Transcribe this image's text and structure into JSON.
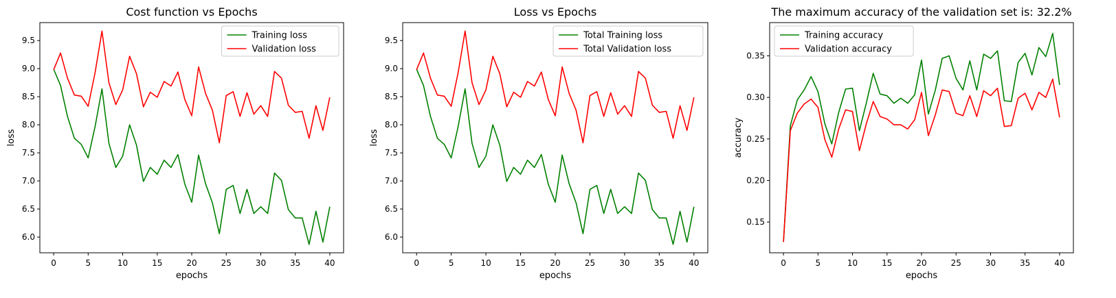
{
  "chart_data": [
    {
      "type": "line",
      "title": "Cost function vs Epochs",
      "xlabel": "epochs",
      "ylabel": "loss",
      "xlim": [
        -2,
        42
      ],
      "ylim": [
        5.72,
        9.82
      ],
      "xticks": [
        0,
        5,
        10,
        15,
        20,
        25,
        30,
        35,
        40
      ],
      "yticks": [
        6.0,
        6.5,
        7.0,
        7.5,
        8.0,
        8.5,
        9.0,
        9.5
      ],
      "ytick_decimals": 1,
      "legend": "top-right",
      "grid": false,
      "x": [
        0,
        1,
        2,
        3,
        4,
        5,
        6,
        7,
        8,
        9,
        10,
        11,
        12,
        13,
        14,
        15,
        16,
        17,
        18,
        19,
        20,
        21,
        22,
        23,
        24,
        25,
        26,
        27,
        28,
        29,
        30,
        31,
        32,
        33,
        34,
        35,
        36,
        37,
        38,
        39,
        40
      ],
      "series": [
        {
          "name": "Training loss",
          "color": "#008000",
          "values": [
            8.99,
            8.7,
            8.15,
            7.76,
            7.65,
            7.41,
            7.97,
            8.64,
            7.67,
            7.24,
            7.44,
            8.0,
            7.64,
            6.99,
            7.24,
            7.12,
            7.37,
            7.24,
            7.47,
            6.94,
            6.62,
            7.46,
            6.95,
            6.61,
            6.06,
            6.85,
            6.92,
            6.42,
            6.85,
            6.42,
            6.54,
            6.42,
            7.14,
            7.01,
            6.49,
            6.34,
            6.34,
            5.87,
            6.46,
            5.91,
            6.54
          ]
        },
        {
          "name": "Validation loss",
          "color": "#ff0000",
          "values": [
            8.98,
            9.28,
            8.83,
            8.53,
            8.51,
            8.33,
            8.93,
            9.67,
            8.75,
            8.36,
            8.62,
            9.22,
            8.91,
            8.32,
            8.58,
            8.49,
            8.77,
            8.69,
            8.94,
            8.45,
            8.16,
            9.03,
            8.56,
            8.26,
            7.68,
            8.52,
            8.59,
            8.15,
            8.57,
            8.19,
            8.34,
            8.15,
            8.95,
            8.83,
            8.35,
            8.22,
            8.24,
            7.76,
            8.34,
            7.9,
            8.49
          ]
        }
      ]
    },
    {
      "type": "line",
      "title": "Loss vs Epochs",
      "xlabel": "epochs",
      "ylabel": "loss",
      "xlim": [
        -2,
        42
      ],
      "ylim": [
        5.72,
        9.82
      ],
      "xticks": [
        0,
        5,
        10,
        15,
        20,
        25,
        30,
        35,
        40
      ],
      "yticks": [
        6.0,
        6.5,
        7.0,
        7.5,
        8.0,
        8.5,
        9.0,
        9.5
      ],
      "ytick_decimals": 1,
      "legend": "top-right",
      "grid": false,
      "x": [
        0,
        1,
        2,
        3,
        4,
        5,
        6,
        7,
        8,
        9,
        10,
        11,
        12,
        13,
        14,
        15,
        16,
        17,
        18,
        19,
        20,
        21,
        22,
        23,
        24,
        25,
        26,
        27,
        28,
        29,
        30,
        31,
        32,
        33,
        34,
        35,
        36,
        37,
        38,
        39,
        40
      ],
      "series": [
        {
          "name": "Total Training loss",
          "color": "#008000",
          "values": [
            8.99,
            8.7,
            8.15,
            7.76,
            7.65,
            7.41,
            7.97,
            8.64,
            7.67,
            7.24,
            7.44,
            8.0,
            7.64,
            6.99,
            7.24,
            7.12,
            7.37,
            7.24,
            7.47,
            6.94,
            6.62,
            7.46,
            6.95,
            6.61,
            6.06,
            6.85,
            6.92,
            6.42,
            6.85,
            6.42,
            6.54,
            6.42,
            7.14,
            7.01,
            6.49,
            6.34,
            6.34,
            5.87,
            6.46,
            5.91,
            6.54
          ]
        },
        {
          "name": "Total Validation loss",
          "color": "#ff0000",
          "values": [
            8.98,
            9.28,
            8.83,
            8.53,
            8.51,
            8.33,
            8.93,
            9.67,
            8.75,
            8.36,
            8.62,
            9.22,
            8.91,
            8.32,
            8.58,
            8.49,
            8.77,
            8.69,
            8.94,
            8.45,
            8.16,
            9.03,
            8.56,
            8.26,
            7.68,
            8.52,
            8.59,
            8.15,
            8.57,
            8.19,
            8.34,
            8.15,
            8.95,
            8.83,
            8.35,
            8.22,
            8.24,
            7.76,
            8.34,
            7.9,
            8.49
          ]
        }
      ]
    },
    {
      "type": "line",
      "title": "The maximum accuracy of the validation set is: 32.2%",
      "xlabel": "epochs",
      "ylabel": "accuracy",
      "xlim": [
        -2,
        42
      ],
      "ylim": [
        0.113,
        0.39
      ],
      "xticks": [
        0,
        5,
        10,
        15,
        20,
        25,
        30,
        35,
        40
      ],
      "yticks": [
        0.15,
        0.2,
        0.25,
        0.3,
        0.35
      ],
      "ytick_decimals": 2,
      "legend": "top-left",
      "grid": false,
      "x": [
        0,
        1,
        2,
        3,
        4,
        5,
        6,
        7,
        8,
        9,
        10,
        11,
        12,
        13,
        14,
        15,
        16,
        17,
        18,
        19,
        20,
        21,
        22,
        23,
        24,
        25,
        26,
        27,
        28,
        29,
        30,
        31,
        32,
        33,
        34,
        35,
        36,
        37,
        38,
        39,
        40
      ],
      "series": [
        {
          "name": "Training accuracy",
          "color": "#008000",
          "values": [
            0.126,
            0.266,
            0.297,
            0.309,
            0.325,
            0.307,
            0.268,
            0.244,
            0.282,
            0.31,
            0.311,
            0.26,
            0.293,
            0.329,
            0.304,
            0.302,
            0.293,
            0.299,
            0.293,
            0.303,
            0.345,
            0.28,
            0.309,
            0.347,
            0.35,
            0.323,
            0.309,
            0.344,
            0.309,
            0.352,
            0.347,
            0.356,
            0.296,
            0.295,
            0.342,
            0.353,
            0.327,
            0.36,
            0.349,
            0.377,
            0.315
          ]
        },
        {
          "name": "Validation accuracy",
          "color": "#ff0000",
          "values": [
            0.126,
            0.26,
            0.281,
            0.292,
            0.298,
            0.288,
            0.249,
            0.228,
            0.262,
            0.285,
            0.283,
            0.236,
            0.268,
            0.295,
            0.277,
            0.274,
            0.267,
            0.267,
            0.262,
            0.273,
            0.306,
            0.254,
            0.279,
            0.309,
            0.307,
            0.281,
            0.278,
            0.302,
            0.277,
            0.308,
            0.302,
            0.311,
            0.265,
            0.266,
            0.299,
            0.305,
            0.285,
            0.306,
            0.3,
            0.322,
            0.276
          ]
        }
      ]
    }
  ]
}
